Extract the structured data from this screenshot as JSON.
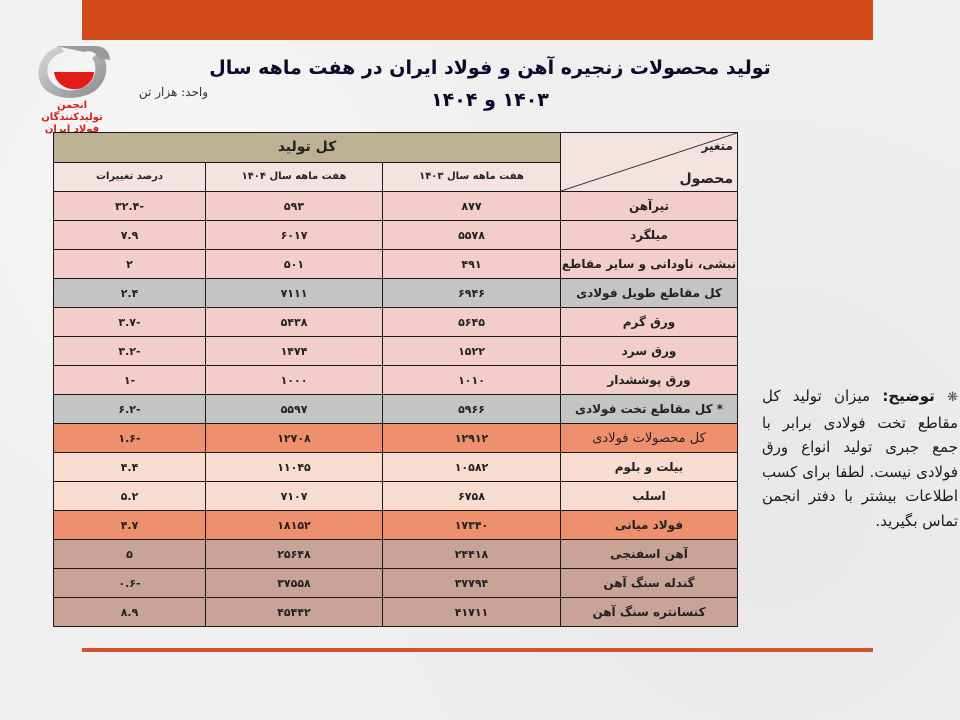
{
  "header": {
    "title": "تولید محصولات زنجیره آهن و فولاد ایران در هفت ماهه سال ۱۴۰۳ و ۱۴۰۴",
    "unit_label": "واحد: هزار تن",
    "logo_text_line1": "انجمن تولیدکنندگان",
    "logo_text_line2": "فولاد ایران"
  },
  "colors": {
    "top_bar": "#d24a18",
    "bottom_line": "#d0562a",
    "header_total_bg": "#bdb194",
    "header_sub_bg": "#f5e3e1",
    "row_pink": "#f2cdc9",
    "row_gray": "#c4c4c4",
    "row_orange": "#ee8f6e",
    "row_peach": "#f8dccf",
    "row_mauve": "#c9a396"
  },
  "table": {
    "corner_top": "متغیر",
    "corner_bottom": "محصول",
    "group_header": "کل تولید",
    "columns": [
      "هفت ماهه سال ۱۴۰۳",
      "هفت ماهه سال ۱۴۰۴",
      "درصد تغییرات"
    ],
    "rows": [
      {
        "product": "تیرآهن",
        "y1403": "۸۷۷",
        "y1404": "۵۹۳",
        "pct": "-۳۲.۴",
        "style": "pink"
      },
      {
        "product": "میلگرد",
        "y1403": "۵۵۷۸",
        "y1404": "۶۰۱۷",
        "pct": "۷.۹",
        "style": "pink"
      },
      {
        "product": "نبشی، ناودانی و سایر مقاطع",
        "y1403": "۴۹۱",
        "y1404": "۵۰۱",
        "pct": "۲",
        "style": "pink"
      },
      {
        "product": "کل مقاطع طویل فولادی",
        "y1403": "۶۹۴۶",
        "y1404": "۷۱۱۱",
        "pct": "۲.۴",
        "style": "gray"
      },
      {
        "product": "ورق گرم",
        "y1403": "۵۶۴۵",
        "y1404": "۵۴۳۸",
        "pct": "-۳.۷",
        "style": "pink"
      },
      {
        "product": "ورق سرد",
        "y1403": "۱۵۲۲",
        "y1404": "۱۴۷۴",
        "pct": "-۳.۲",
        "style": "pink"
      },
      {
        "product": "ورق پوششدار",
        "y1403": "۱۰۱۰",
        "y1404": "۱۰۰۰",
        "pct": "-۱",
        "style": "pink"
      },
      {
        "product": "* کل مقاطع تخت فولادی",
        "y1403": "۵۹۶۶",
        "y1404": "۵۵۹۷",
        "pct": "-۶.۲",
        "style": "gray"
      },
      {
        "product": "کل محصولات فولادی",
        "y1403": "۱۲۹۱۲",
        "y1404": "۱۲۷۰۸",
        "pct": "-۱.۶",
        "style": "orange"
      },
      {
        "product": "بیلت و بلوم",
        "y1403": "۱۰۵۸۲",
        "y1404": "۱۱۰۴۵",
        "pct": "۴.۴",
        "style": "peach"
      },
      {
        "product": "اسلب",
        "y1403": "۶۷۵۸",
        "y1404": "۷۱۰۷",
        "pct": "۵.۲",
        "style": "peach"
      },
      {
        "product": "فولاد میانی",
        "y1403": "۱۷۳۴۰",
        "y1404": "۱۸۱۵۲",
        "pct": "۴.۷",
        "style": "orange-b"
      },
      {
        "product": "آهن اسفنجی",
        "y1403": "۲۴۴۱۸",
        "y1404": "۲۵۶۴۸",
        "pct": "۵",
        "style": "mauve"
      },
      {
        "product": "گندله سنگ آهن",
        "y1403": "۳۷۷۹۴",
        "y1404": "۳۷۵۵۸",
        "pct": "-۰.۶",
        "style": "mauve"
      },
      {
        "product": "کنسانتره سنگ آهن",
        "y1403": "۴۱۷۱۱",
        "y1404": "۴۵۴۴۲",
        "pct": "۸.۹",
        "style": "mauve"
      }
    ]
  },
  "note": {
    "star": "❋",
    "label": "توضیح:",
    "text": "میزان تولید کل مقاطع تخت فولادی برابر با جمع جبری تولید انواع ورق فولادی نیست. لطفا برای کسب اطلاعات بیشتر با دفتر انجمن تماس بگیرید."
  }
}
